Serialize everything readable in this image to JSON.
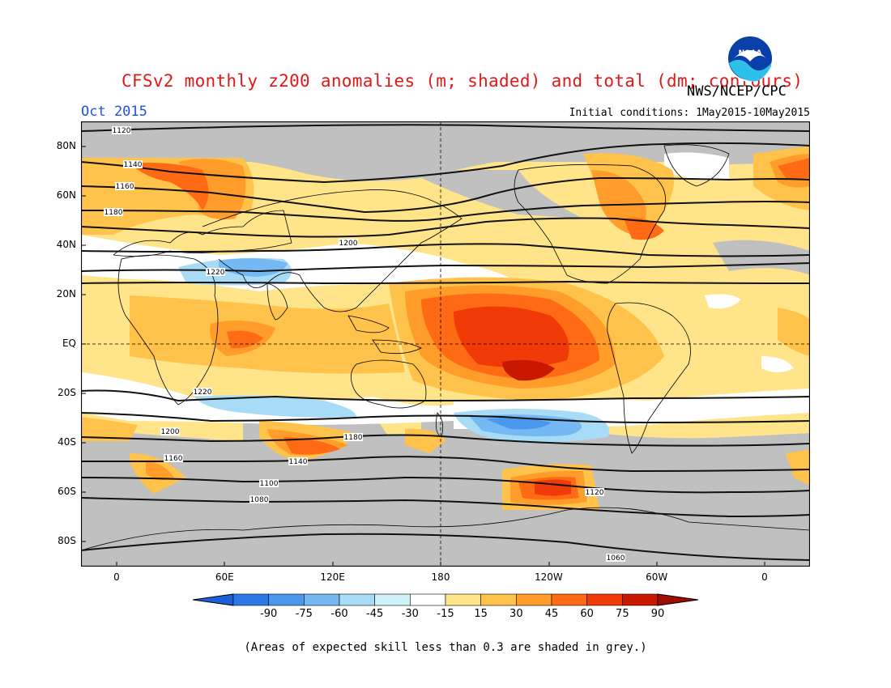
{
  "title": "CFSv2 monthly z200 anomalies (m; shaded) and total (dm; contours)",
  "agency": "NWS/NCEP/CPC",
  "month": "Oct 2015",
  "initial_conditions": "Initial conditions: 1May2015-10May2015",
  "logo_text": "NOAA",
  "lat_labels": [
    {
      "text": "80N",
      "lat": 80
    },
    {
      "text": "60N",
      "lat": 60
    },
    {
      "text": "40N",
      "lat": 40
    },
    {
      "text": "20N",
      "lat": 20
    },
    {
      "text": "EQ",
      "lat": 0
    },
    {
      "text": "20S",
      "lat": -20
    },
    {
      "text": "40S",
      "lat": -40
    },
    {
      "text": "60S",
      "lat": -60
    },
    {
      "text": "80S",
      "lat": -80
    }
  ],
  "lon_labels": [
    {
      "text": "0",
      "lon": 0
    },
    {
      "text": "60E",
      "lon": 60
    },
    {
      "text": "120E",
      "lon": 120
    },
    {
      "text": "180",
      "lon": 180
    },
    {
      "text": "120W",
      "lon": 240
    },
    {
      "text": "60W",
      "lon": 300
    },
    {
      "text": "0",
      "lon": 360
    }
  ],
  "colorbar": {
    "labels": [
      "-90",
      "-75",
      "-60",
      "-45",
      "-30",
      "-15",
      "15",
      "30",
      "45",
      "60",
      "75",
      "90"
    ],
    "colors": [
      "#1c5fd8",
      "#2c78e6",
      "#4a98ee",
      "#74b8f4",
      "#a8dcf6",
      "#cdf2f8",
      "#ffffff",
      "#ffe48a",
      "#ffc24a",
      "#ff9c2a",
      "#ff6a14",
      "#f03a08",
      "#c81800",
      "#a00c00"
    ],
    "left_end_color": "#1c5fd8",
    "right_end_color": "#a00c00"
  },
  "contour_labels": [
    "1120",
    "1140",
    "1160",
    "1180",
    "1200",
    "1220",
    "1220",
    "1200",
    "1180",
    "1160",
    "1140",
    "1120",
    "1100",
    "1080",
    "1060"
  ],
  "footnote": "(Areas of expected skill less than 0.3 are shaded in grey.)",
  "colors": {
    "grey_skill": "#c0c0c0",
    "title": "#e01818",
    "month": "#2050e0"
  }
}
